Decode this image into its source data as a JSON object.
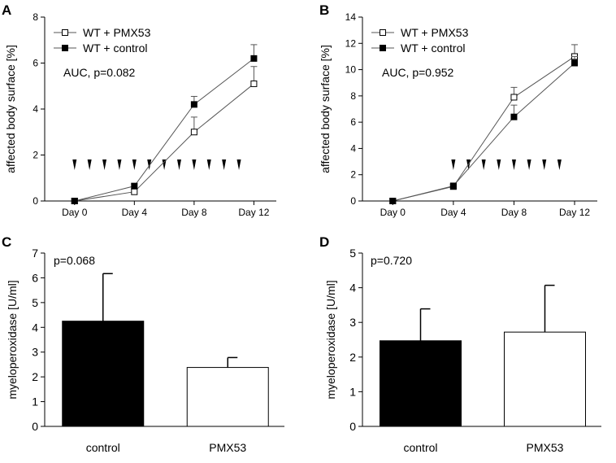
{
  "chart_data": [
    {
      "panel": "A",
      "type": "line",
      "ylabel": "affected body surface [%]",
      "xlabel": "",
      "ylim": [
        0,
        8
      ],
      "yticks": [
        0,
        2,
        4,
        6,
        8
      ],
      "xlim": [
        -2,
        13.5
      ],
      "xticks": [
        0,
        4,
        8,
        12
      ],
      "xticklabels": [
        "Day 0",
        "Day 4",
        "Day 8",
        "Day 12"
      ],
      "annotation": "AUC, p=0.082",
      "legend_position": "top-left",
      "series": [
        {
          "name": "WT + PMX53",
          "marker": "open-square",
          "x": [
            0,
            4,
            8,
            12
          ],
          "y": [
            0,
            0.4,
            3.0,
            5.1
          ],
          "err": [
            0,
            0.15,
            0.65,
            0.75
          ]
        },
        {
          "name": "WT + control",
          "marker": "filled-square",
          "x": [
            0,
            4,
            8,
            12
          ],
          "y": [
            0,
            0.65,
            4.2,
            6.2
          ],
          "err": [
            0,
            0.1,
            0.35,
            0.6
          ]
        }
      ],
      "treatment_days": [
        0,
        1,
        2,
        3,
        4,
        5,
        6,
        7,
        8,
        9,
        10,
        11
      ]
    },
    {
      "panel": "B",
      "type": "line",
      "ylabel": "affected body surface [%]",
      "xlabel": "",
      "ylim": [
        0,
        14
      ],
      "yticks": [
        0,
        2,
        4,
        6,
        8,
        10,
        12,
        14
      ],
      "xlim": [
        -2,
        13.5
      ],
      "xticks": [
        0,
        4,
        8,
        12
      ],
      "xticklabels": [
        "Day 0",
        "Day 4",
        "Day 8",
        "Day 12"
      ],
      "annotation": "AUC, p=0.952",
      "legend_position": "top-left",
      "series": [
        {
          "name": "WT + PMX53",
          "marker": "open-square",
          "x": [
            0,
            4,
            8,
            12
          ],
          "y": [
            0,
            1.1,
            7.9,
            11.0
          ],
          "err": [
            0,
            0.15,
            0.75,
            0.9
          ]
        },
        {
          "name": "WT + control",
          "marker": "filled-square",
          "x": [
            0,
            4,
            8,
            12
          ],
          "y": [
            0,
            1.15,
            6.4,
            10.5
          ],
          "err": [
            0,
            0.1,
            0.9,
            0.5
          ]
        }
      ],
      "treatment_days": [
        4,
        5,
        6,
        7,
        8,
        9,
        10,
        11
      ]
    },
    {
      "panel": "C",
      "type": "bar",
      "ylabel": "myeloperoxidase [U/ml]",
      "ylim": [
        0,
        7
      ],
      "yticks": [
        0,
        1,
        2,
        3,
        4,
        5,
        6,
        7
      ],
      "categories": [
        "control",
        "PMX53"
      ],
      "values": [
        4.25,
        2.38
      ],
      "errors": [
        1.92,
        0.4
      ],
      "fills": [
        "#000000",
        "#ffffff"
      ],
      "annotation": "p=0.068"
    },
    {
      "panel": "D",
      "type": "bar",
      "ylabel": "myeloperoxidase [U/ml]",
      "ylim": [
        0,
        5
      ],
      "yticks": [
        0,
        1,
        2,
        3,
        4,
        5
      ],
      "categories": [
        "control",
        "PMX53"
      ],
      "values": [
        2.47,
        2.72
      ],
      "errors": [
        0.92,
        1.35
      ],
      "fills": [
        "#000000",
        "#ffffff"
      ],
      "annotation": "p=0.720"
    }
  ]
}
